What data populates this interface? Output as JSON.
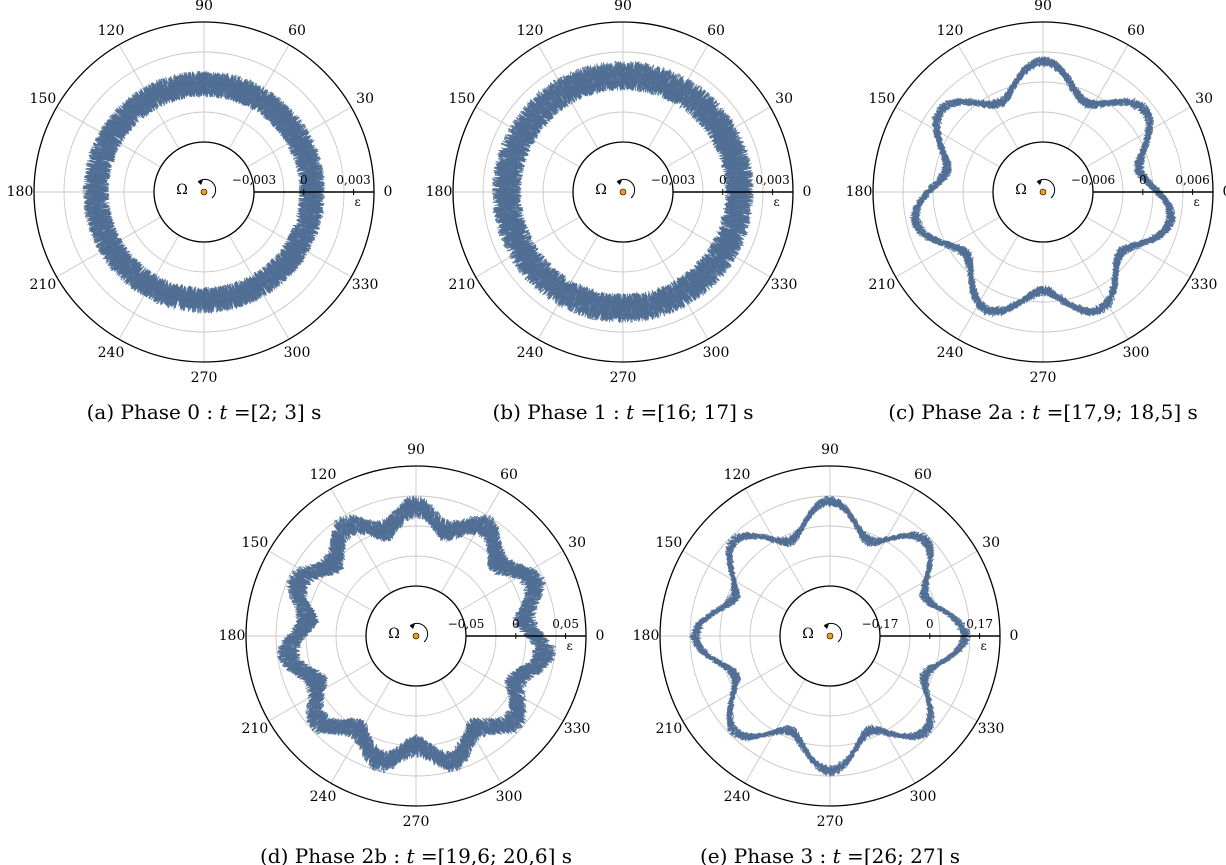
{
  "chart_data": [
    {
      "type": "polar_line",
      "caption": "(a) Phase 0 : t =[2; 3] s",
      "caption_parts": {
        "label": "(a) Phase 0 : ",
        "var": "t",
        "rest": " =[2; 3] s"
      },
      "angle_ticks": [
        0,
        30,
        60,
        90,
        120,
        150,
        180,
        210,
        240,
        270,
        300,
        330
      ],
      "radial_ticks": [
        "−0,003",
        "0",
        "0,003"
      ],
      "radial_label": "ε",
      "rotation_symbol": "Ω",
      "radial_range": [
        -0.003,
        0.003
      ],
      "lobes": 0,
      "mean_value": 0.0005,
      "lobe_amplitude": 0.0,
      "noise_amplitude": 0.0008
    },
    {
      "type": "polar_line",
      "caption": "(b) Phase 1 : t =[16; 17] s",
      "caption_parts": {
        "label": "(b) Phase 1 : ",
        "var": "t",
        "rest": " =[16; 17] s"
      },
      "angle_ticks": [
        0,
        30,
        60,
        90,
        120,
        150,
        180,
        210,
        240,
        270,
        300,
        330
      ],
      "radial_ticks": [
        "−0,003",
        "0",
        "0,003"
      ],
      "radial_label": "ε",
      "rotation_symbol": "Ω",
      "radial_range": [
        -0.003,
        0.003
      ],
      "lobes": 0,
      "mean_value": 0.001,
      "lobe_amplitude": 0.0,
      "noise_amplitude": 0.0009
    },
    {
      "type": "polar_line",
      "caption": "(c) Phase 2a : t =[17,9; 18,5] s",
      "caption_parts": {
        "label": "(c) Phase 2a : ",
        "var": "t",
        "rest": " =[17,9; 18,5] s"
      },
      "angle_ticks": [
        0,
        30,
        60,
        90,
        120,
        150,
        180,
        210,
        240,
        270,
        300,
        330
      ],
      "radial_ticks": [
        "−0,006",
        "0",
        "0,006"
      ],
      "radial_label": "ε",
      "rotation_symbol": "Ω",
      "radial_range": [
        -0.006,
        0.006
      ],
      "lobes": 7,
      "mean_value": 0.0018,
      "lobe_amplitude": 0.0018,
      "noise_amplitude": 0.0005
    },
    {
      "type": "polar_line",
      "caption": "(d) Phase 2b : t =[19,6; 20,6] s",
      "caption_parts": {
        "label": "(d) Phase 2b : ",
        "var": "t",
        "rest": " =[19,6; 20,6] s"
      },
      "angle_ticks": [
        0,
        30,
        60,
        90,
        120,
        150,
        180,
        210,
        240,
        270,
        300,
        330
      ],
      "radial_ticks": [
        "−0,05",
        "0",
        "0,05"
      ],
      "radial_label": "ε",
      "rotation_symbol": "Ω",
      "radial_range": [
        -0.05,
        0.05
      ],
      "lobes": 11,
      "mean_value": 0.02,
      "lobe_amplitude": 0.01,
      "noise_amplitude": 0.011
    },
    {
      "type": "polar_line",
      "caption": "(e) Phase 3 : t =[26; 27] s",
      "caption_parts": {
        "label": "(e) Phase 3 : ",
        "var": "t",
        "rest": " =[26; 27] s"
      },
      "angle_ticks": [
        0,
        30,
        60,
        90,
        120,
        150,
        180,
        210,
        240,
        270,
        300,
        330
      ],
      "radial_ticks": [
        "−0,17",
        "0",
        "0,17"
      ],
      "radial_label": "ε",
      "rotation_symbol": "Ω",
      "radial_range": [
        -0.17,
        0.17
      ],
      "lobes": 8,
      "mean_value": 0.065,
      "lobe_amplitude": 0.055,
      "noise_amplitude": 0.012
    }
  ],
  "colors": {
    "trace": "#3e5f8a",
    "grid": "#c8c8c8",
    "center_dot": "#f39c12"
  }
}
